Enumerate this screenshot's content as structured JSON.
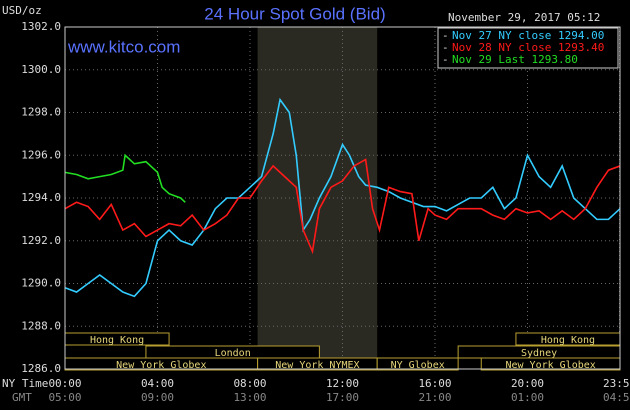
{
  "chart_data": {
    "type": "line",
    "title": "24 Hour Spot Gold (Bid)",
    "timestamp": "November 29, 2017 05:12",
    "ylabel": "USD/oz",
    "watermark": "www.kitco.com",
    "x_label": "NY Time",
    "x2_label": "GMT",
    "xlim": [
      0,
      24
    ],
    "xticks": [
      {
        "value": 0,
        "label": "00:00"
      },
      {
        "value": 4,
        "label": "04:00"
      },
      {
        "value": 8,
        "label": "08:00"
      },
      {
        "value": 12,
        "label": "12:00"
      },
      {
        "value": 16,
        "label": "16:00"
      },
      {
        "value": 20,
        "label": "20:00"
      },
      {
        "value": 23.98,
        "label": "23:59"
      }
    ],
    "x2ticks": [
      "05:00",
      "09:00",
      "13:00",
      "17:00",
      "21:00",
      "01:00",
      "04:59"
    ],
    "ylim": [
      1286,
      1302
    ],
    "yticks": [
      {
        "value": 1286,
        "label": "1286.0"
      },
      {
        "value": 1288,
        "label": "1288.0"
      },
      {
        "value": 1290,
        "label": "1290.0"
      },
      {
        "value": 1292,
        "label": "1292.0"
      },
      {
        "value": 1294,
        "label": "1294.0"
      },
      {
        "value": 1296,
        "label": "1296.0"
      },
      {
        "value": 1298,
        "label": "1298.0"
      },
      {
        "value": 1300,
        "label": "1300.0"
      },
      {
        "value": 1302,
        "label": "1302.0"
      }
    ],
    "grid": true,
    "shade_xlim": [
      8.33,
      13.5
    ],
    "session_rows": [
      [
        {
          "name": "Hong Kong",
          "start": 0,
          "end": 4.5
        },
        {
          "name": "Hong Kong",
          "start": 19.5,
          "end": 24
        }
      ],
      [
        {
          "name": "London",
          "start": 3.5,
          "end": 11
        },
        {
          "name": "Sydney",
          "start": 17,
          "end": 24
        }
      ],
      [
        {
          "name": "New York Globex",
          "start": 0,
          "end": 8.33
        },
        {
          "name": "New York NYMEX",
          "start": 8.33,
          "end": 13.5
        },
        {
          "name": "NY Globex",
          "start": 13.5,
          "end": 17
        },
        {
          "name": "New York Globex",
          "start": 18,
          "end": 24
        }
      ]
    ],
    "series": [
      {
        "name": "Nov 27 NY close 1294.00",
        "color": "#33ccff",
        "x": [
          0,
          0.5,
          1,
          1.5,
          2,
          2.5,
          3,
          3.5,
          4,
          4.5,
          5,
          5.5,
          6,
          6.5,
          7,
          7.5,
          8,
          8.5,
          9,
          9.3,
          9.7,
          10,
          10.3,
          10.6,
          11,
          11.5,
          12,
          12.3,
          12.7,
          13,
          13.5,
          14,
          14.5,
          15,
          15.5,
          16,
          16.5,
          17,
          17.5,
          18,
          18.5,
          19,
          19.5,
          20,
          20.5,
          21,
          21.5,
          22,
          22.5,
          23,
          23.5,
          24
        ],
        "values": [
          1289.8,
          1289.6,
          1290.0,
          1290.4,
          1290.0,
          1289.6,
          1289.4,
          1290.0,
          1292.0,
          1292.5,
          1292.0,
          1291.8,
          1292.5,
          1293.5,
          1294.0,
          1294.0,
          1294.5,
          1295.0,
          1297.0,
          1298.6,
          1298.0,
          1296.0,
          1292.5,
          1293.0,
          1294.0,
          1295.0,
          1296.5,
          1296.0,
          1295.0,
          1294.6,
          1294.5,
          1294.3,
          1294.0,
          1293.8,
          1293.6,
          1293.6,
          1293.4,
          1293.7,
          1294.0,
          1294.0,
          1294.5,
          1293.5,
          1294.0,
          1296.0,
          1295.0,
          1294.5,
          1295.5,
          1294.0,
          1293.5,
          1293.0,
          1293.0,
          1293.5
        ]
      },
      {
        "name": "Nov 28 NY close 1293.40",
        "color": "#ff1a1a",
        "x": [
          0,
          0.5,
          1,
          1.5,
          2,
          2.5,
          3,
          3.5,
          4,
          4.5,
          5,
          5.5,
          6,
          6.5,
          7,
          7.5,
          8,
          8.5,
          9,
          9.5,
          10,
          10.3,
          10.7,
          11,
          11.5,
          12,
          12.5,
          13,
          13.3,
          13.6,
          14,
          14.5,
          15,
          15.3,
          15.7,
          16,
          16.5,
          17,
          17.5,
          18,
          18.5,
          19,
          19.5,
          20,
          20.5,
          21,
          21.5,
          22,
          22.5,
          23,
          23.5,
          24
        ],
        "values": [
          1293.5,
          1293.8,
          1293.6,
          1293.0,
          1293.7,
          1292.5,
          1292.8,
          1292.2,
          1292.5,
          1292.8,
          1292.7,
          1293.2,
          1292.5,
          1292.8,
          1293.2,
          1294.0,
          1294.0,
          1294.8,
          1295.5,
          1295.0,
          1294.5,
          1292.5,
          1291.5,
          1293.5,
          1294.5,
          1294.8,
          1295.5,
          1295.8,
          1293.5,
          1292.5,
          1294.5,
          1294.3,
          1294.2,
          1292.0,
          1293.5,
          1293.2,
          1293.0,
          1293.5,
          1293.5,
          1293.5,
          1293.2,
          1293.0,
          1293.5,
          1293.3,
          1293.4,
          1293.0,
          1293.4,
          1293.0,
          1293.5,
          1294.5,
          1295.3,
          1295.5
        ]
      },
      {
        "name": "Nov 29 Last 1293.80",
        "color": "#22dd22",
        "x": [
          0,
          0.5,
          1,
          1.5,
          2,
          2.5,
          2.6,
          3,
          3.5,
          4,
          4.2,
          4.5,
          5,
          5.2
        ],
        "values": [
          1295.2,
          1295.1,
          1294.9,
          1295.0,
          1295.1,
          1295.3,
          1296.0,
          1295.6,
          1295.7,
          1295.2,
          1294.5,
          1294.2,
          1294.0,
          1293.8
        ]
      }
    ]
  }
}
